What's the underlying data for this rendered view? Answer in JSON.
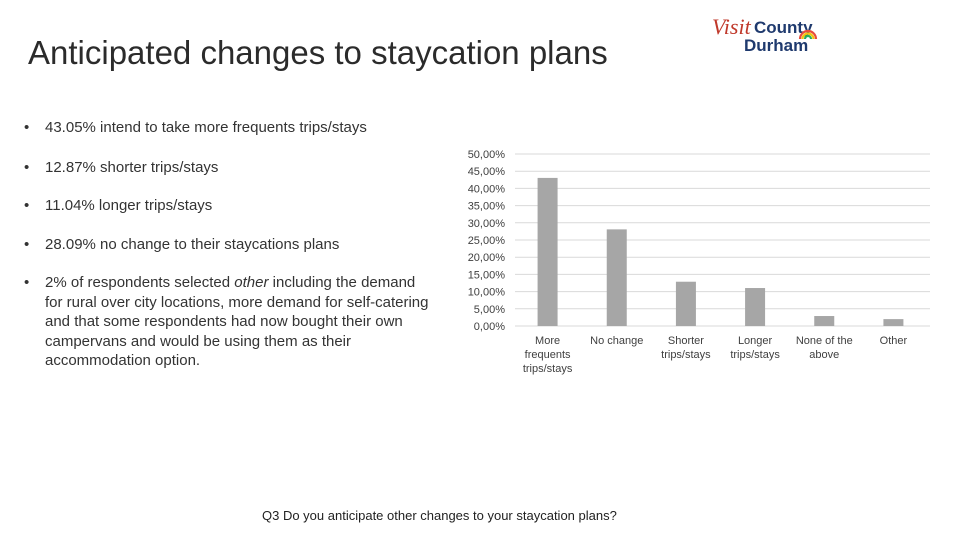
{
  "slide": {
    "title": "Anticipated changes to staycation plans",
    "logo": {
      "line1_visit": "Visit",
      "line1_county": "County",
      "line2": "Durham"
    },
    "bullets": [
      {
        "text": "43.05% intend to take more frequents trips/stays"
      },
      {
        "text": "12.87% shorter trips/stays"
      },
      {
        "text": "11.04% longer trips/stays"
      },
      {
        "text": "28.09% no change to their staycations plans"
      },
      {
        "prefix": "2% of respondents selected ",
        "emphasis": "other",
        "suffix": " including the demand for rural over city locations, more demand for self-catering and that some respondents had now bought their own campervans and would be using them as their accommodation option."
      }
    ],
    "caption": "Q3  Do you anticipate other changes to your staycation plans?"
  },
  "chart_data": {
    "type": "bar",
    "categories": [
      [
        "More",
        "frequents",
        "trips/stays"
      ],
      [
        "No change"
      ],
      [
        "Shorter",
        "trips/stays"
      ],
      [
        "Longer",
        "trips/stays"
      ],
      [
        "None of the",
        "above"
      ],
      [
        "Other"
      ]
    ],
    "values": [
      43.05,
      28.09,
      12.87,
      11.04,
      2.9,
      2.0
    ],
    "ylim": [
      0,
      50
    ],
    "yticks": [
      "0,00%",
      "5,00%",
      "10,00%",
      "15,00%",
      "20,00%",
      "25,00%",
      "30,00%",
      "35,00%",
      "40,00%",
      "45,00%",
      "50,00%"
    ],
    "grid": true,
    "bar_color": "#a6a6a6",
    "grid_color": "#d9d9d9"
  }
}
